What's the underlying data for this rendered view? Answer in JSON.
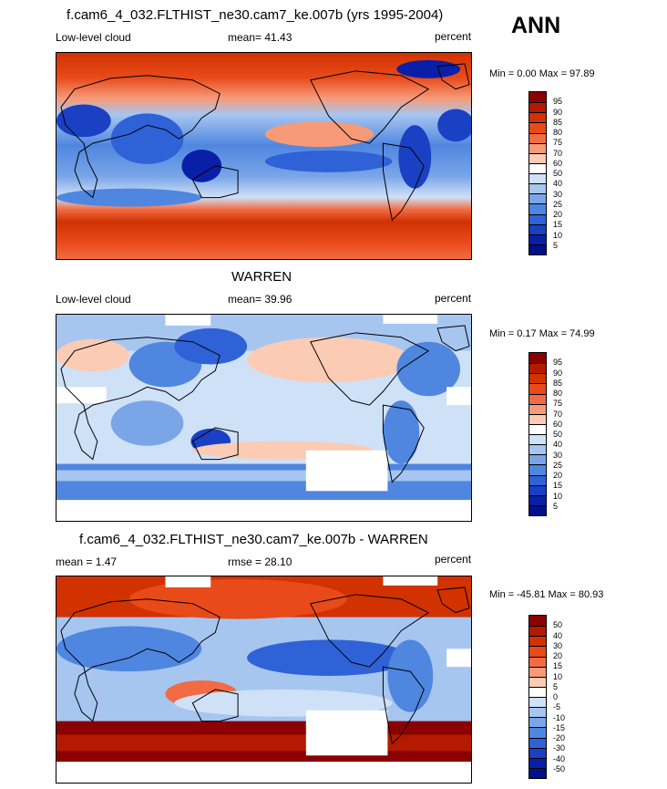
{
  "season": "ANN",
  "units": "percent",
  "panels": [
    {
      "title": "f.cam6_4_032.FLTHIST_ne30.cam7_ke.007b (yrs 1995-2004)",
      "left_label": "Low-level cloud",
      "mean_label": "mean=",
      "mean_value": "41.43",
      "rmse_label": "",
      "rmse_value": "",
      "units": "percent",
      "minmax": "Min =   0.00 Max =  97.89",
      "colorbar": {
        "labels": [
          "95",
          "90",
          "85",
          "80",
          "75",
          "70",
          "60",
          "50",
          "40",
          "30",
          "25",
          "20",
          "15",
          "10",
          "5"
        ],
        "colors": [
          "#8b0000",
          "#b31a00",
          "#d13200",
          "#e84a1a",
          "#f26b43",
          "#f79a78",
          "#fbcbb4",
          "#ffffff",
          "#cfe1f7",
          "#a6c6f0",
          "#7aa6e8",
          "#4f86e0",
          "#2f62d6",
          "#1a40c4",
          "#0a1fa8",
          "#00108a"
        ]
      }
    },
    {
      "title": "WARREN",
      "left_label": "Low-level cloud",
      "mean_label": "mean=",
      "mean_value": "39.96",
      "rmse_label": "",
      "rmse_value": "",
      "units": "percent",
      "minmax": "Min =   0.17 Max =  74.99",
      "colorbar": {
        "labels": [
          "95",
          "90",
          "85",
          "80",
          "75",
          "70",
          "60",
          "50",
          "40",
          "30",
          "25",
          "20",
          "15",
          "10",
          "5"
        ],
        "colors": [
          "#8b0000",
          "#b31a00",
          "#d13200",
          "#e84a1a",
          "#f26b43",
          "#f79a78",
          "#fbcbb4",
          "#ffffff",
          "#cfe1f7",
          "#a6c6f0",
          "#7aa6e8",
          "#4f86e0",
          "#2f62d6",
          "#1a40c4",
          "#0a1fa8",
          "#00108a"
        ]
      }
    },
    {
      "title": "f.cam6_4_032.FLTHIST_ne30.cam7_ke.007b - WARREN",
      "left_label": "mean =",
      "mean_label": "",
      "mean_value": "1.47",
      "rmse_label": "rmse =",
      "rmse_value": "28.10",
      "units": "percent",
      "minmax": "Min = -45.81 Max =  80.93",
      "colorbar": {
        "labels": [
          "50",
          "40",
          "30",
          "20",
          "15",
          "10",
          "5",
          "0",
          "-5",
          "-10",
          "-15",
          "-20",
          "-30",
          "-40",
          "-50"
        ],
        "colors": [
          "#8b0000",
          "#b31a00",
          "#d13200",
          "#e84a1a",
          "#f26b43",
          "#f79a78",
          "#fbcbb4",
          "#ffffff",
          "#cfe1f7",
          "#a6c6f0",
          "#7aa6e8",
          "#4f86e0",
          "#2f62d6",
          "#1a40c4",
          "#0a1fa8",
          "#00108a"
        ]
      }
    }
  ]
}
